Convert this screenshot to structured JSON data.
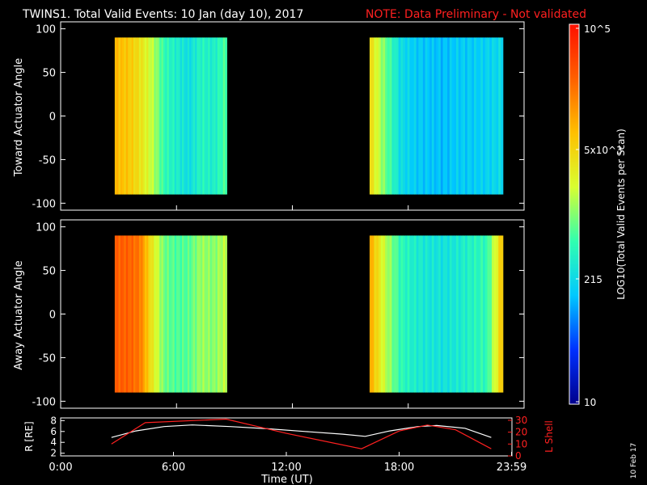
{
  "header": {
    "title": "TWINS1. Total Valid Events: 10 Jan (day  10), 2017",
    "note": "NOTE: Data Preliminary - Not validated"
  },
  "side_date": "10 Feb 17",
  "colorbar": {
    "label": "LOG10(Total Valid Events per Scan)",
    "tick_labels": [
      "10",
      "215",
      "5x10^3",
      "10^5"
    ]
  },
  "colors": {
    "bar_stops": [
      "#00008c",
      "#0030ff",
      "#00c8ff",
      "#30ffb0",
      "#d8ff30",
      "#ffc000",
      "#ff6000",
      "#ff1000"
    ],
    "line_white": "#ffffff",
    "line_red": "#ff2020"
  },
  "chart_data": [
    {
      "type": "heatmap",
      "panel": "top",
      "ylabel": "Toward Actuator Angle",
      "yticks": [
        "100",
        "50",
        "0",
        "-50",
        "-100"
      ],
      "ylim": [
        -108,
        108
      ],
      "angle_range": [
        -90,
        90
      ],
      "xlim_hours": [
        0,
        24
      ],
      "segments": [
        {
          "start_h": 2.8,
          "end_h": 8.6,
          "level_profile": [
            0.72,
            0.7,
            0.64,
            0.55,
            0.42,
            0.38,
            0.34,
            0.4,
            0.38,
            0.45
          ]
        },
        {
          "start_h": 16.0,
          "end_h": 22.9,
          "level_profile": [
            0.65,
            0.48,
            0.34,
            0.3,
            0.29,
            0.28,
            0.3,
            0.3,
            0.31,
            0.33
          ]
        }
      ]
    },
    {
      "type": "heatmap",
      "panel": "bottom",
      "ylabel": "Away Actuator Angle",
      "yticks": [
        "100",
        "50",
        "0",
        "-50",
        "-100"
      ],
      "ylim": [
        -108,
        108
      ],
      "angle_range": [
        -90,
        90
      ],
      "xlim_hours": [
        0,
        24
      ],
      "segments": [
        {
          "start_h": 2.8,
          "end_h": 8.6,
          "level_profile": [
            0.86,
            0.86,
            0.82,
            0.62,
            0.48,
            0.45,
            0.46,
            0.52,
            0.5,
            0.55
          ]
        },
        {
          "start_h": 16.0,
          "end_h": 22.9,
          "level_profile": [
            0.74,
            0.55,
            0.42,
            0.38,
            0.36,
            0.35,
            0.37,
            0.4,
            0.42,
            0.7
          ]
        }
      ]
    },
    {
      "type": "line",
      "panel": "orbit",
      "ylabel": "R [RE]",
      "y2label": "L Shell",
      "xlabel": "Time (UT)",
      "x_tick_labels": [
        "0:00",
        "6:00",
        "12:00",
        "18:00",
        "23:59"
      ],
      "y_ticks": [
        "2",
        "4",
        "6",
        "8"
      ],
      "y2_ticks": [
        "0",
        "10",
        "20",
        "30"
      ],
      "ylim": [
        1.5,
        8.5
      ],
      "y2lim": [
        0,
        32
      ],
      "series": [
        {
          "axis": "left",
          "x": [
            2.7,
            4,
            5.5,
            7,
            9,
            11,
            13,
            15,
            16.2,
            17.5,
            19,
            20,
            21.5,
            22.9
          ],
          "y": [
            4.9,
            6.1,
            6.9,
            7.2,
            6.9,
            6.5,
            6.0,
            5.5,
            5.1,
            6.1,
            6.9,
            7.1,
            6.6,
            4.9
          ]
        },
        {
          "axis": "right",
          "x": [
            2.7,
            4.5,
            8.8,
            12,
            16.0,
            18,
            19.5,
            21,
            22.9
          ],
          "y": [
            10,
            28,
            31,
            19,
            6,
            21,
            26,
            22,
            6
          ]
        }
      ]
    }
  ]
}
